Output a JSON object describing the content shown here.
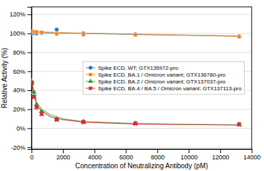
{
  "chart_data": {
    "type": "scatter",
    "xlabel": "Concentration of Neutralizing Antibody (pM)",
    "ylabel": "Relative Activity (%)",
    "xlim": [
      0,
      14000
    ],
    "ylim": [
      -0.22,
      1.28
    ],
    "xticks": [
      0,
      2000,
      4000,
      6000,
      8000,
      10000,
      12000,
      14000
    ],
    "yticks": [
      {
        "value": -0.2,
        "label": "-20%"
      },
      {
        "value": 0.0,
        "label": "0%"
      },
      {
        "value": 0.2,
        "label": "20%"
      },
      {
        "value": 0.4,
        "label": "40%"
      },
      {
        "value": 0.6,
        "label": "60%"
      },
      {
        "value": 0.8,
        "label": "80%"
      },
      {
        "value": 1.0,
        "label": "100%"
      },
      {
        "value": 1.2,
        "label": "120%"
      }
    ],
    "grid": "y",
    "legend": "center",
    "series": [
      {
        "name": "Spike ECD, WT; GTX135972-pro",
        "marker": "circle",
        "x": [
          20,
          160,
          320,
          640,
          1600,
          3300,
          6600,
          13200
        ],
        "values": [
          1.0,
          1.005,
          1.0,
          1.005,
          1.04,
          1.0,
          0.99,
          0.97
        ],
        "curve": {
          "x": [
            0,
            500,
            1000,
            2000,
            4000,
            7000,
            10000,
            13200
          ],
          "values": [
            1.005,
            1.005,
            1.004,
            1.002,
            0.998,
            0.988,
            0.98,
            0.972
          ]
        }
      },
      {
        "name": "Spike ECD, BA.1 / Omicron variant; GTX136780-pro",
        "marker": "square",
        "x": [
          20,
          160,
          320,
          640,
          1600,
          3300,
          6600,
          13200
        ],
        "values": [
          1.02,
          1.02,
          1.015,
          1.01,
          0.995,
          0.988,
          0.985,
          0.965
        ],
        "curve": {
          "x": [
            0,
            500,
            1000,
            2000,
            4000,
            7000,
            10000,
            13200
          ],
          "values": [
            1.025,
            1.018,
            1.014,
            1.008,
            1.0,
            0.99,
            0.982,
            0.968
          ]
        }
      },
      {
        "name": "Spike ECD, BA.2 / Omicron variant; GTX137037-pro",
        "marker": "triangle",
        "x": [
          20,
          160,
          320,
          640,
          1600,
          3300,
          6600,
          13200
        ],
        "values": [
          0.49,
          0.38,
          0.25,
          0.18,
          0.1,
          0.07,
          0.05,
          0.04
        ],
        "curve": {
          "x": [
            0,
            80,
            160,
            320,
            640,
            1200,
            2000,
            3300,
            6600,
            10000,
            13200
          ],
          "values": [
            0.52,
            0.44,
            0.38,
            0.28,
            0.2,
            0.14,
            0.1,
            0.07,
            0.05,
            0.04,
            0.035
          ]
        }
      },
      {
        "name": "Spike ECD, BA.4 / BA.5 / Omicron variant; GTX137113-pro",
        "marker": "x",
        "x": [
          20,
          160,
          320,
          640,
          1600,
          3300,
          6600,
          13200
        ],
        "values": [
          0.48,
          0.33,
          0.22,
          0.15,
          0.09,
          0.065,
          0.05,
          0.04
        ],
        "curve": {
          "x": [
            0,
            80,
            160,
            320,
            640,
            1200,
            2000,
            3300,
            6600,
            10000,
            13200
          ],
          "values": [
            0.5,
            0.41,
            0.34,
            0.25,
            0.18,
            0.12,
            0.09,
            0.065,
            0.045,
            0.038,
            0.033
          ]
        }
      }
    ]
  }
}
